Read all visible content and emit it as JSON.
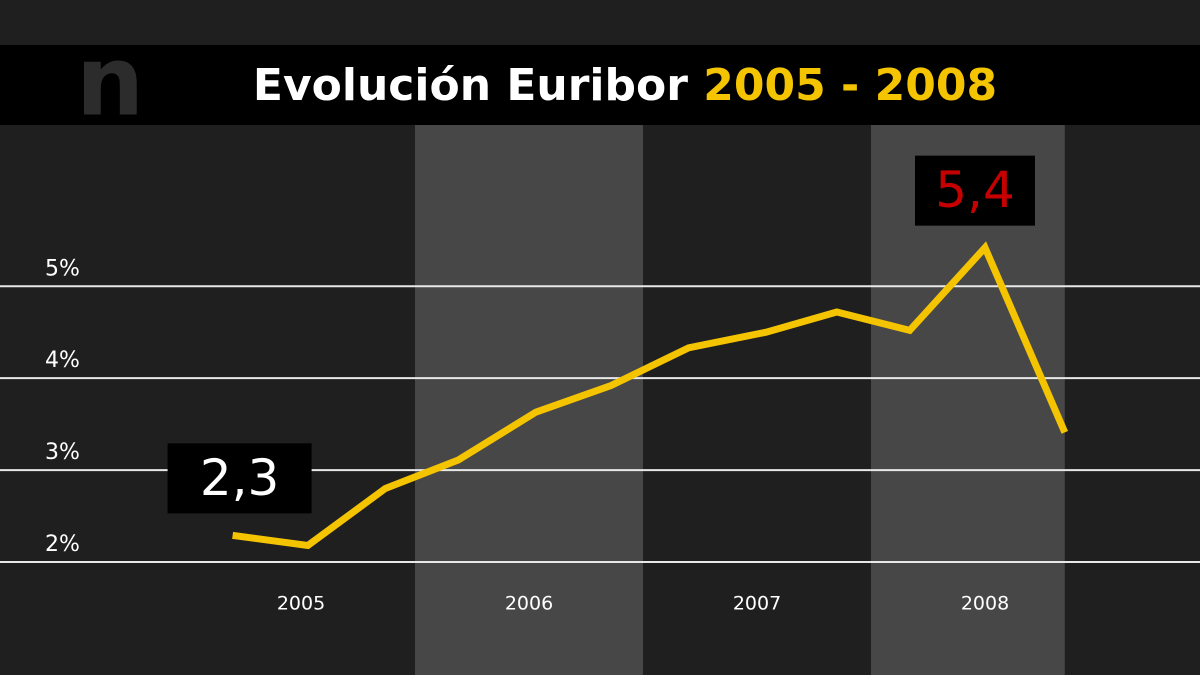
{
  "chart_data": {
    "type": "line",
    "logo": "n",
    "title": "Evolución Euribor",
    "subtitle": "2005 - 2008",
    "x": [
      2005.2,
      2005.53,
      2005.87,
      2006.19,
      2006.53,
      2006.86,
      2007.2,
      2007.54,
      2007.85,
      2008.17,
      2008.5,
      2008.85
    ],
    "series": [
      {
        "color": "#f5c400",
        "values": [
          2.29,
          2.18,
          2.8,
          3.11,
          3.63,
          3.92,
          4.33,
          4.5,
          4.72,
          4.52,
          5.42,
          3.41
        ],
        "value_labels": [
          "2,3",
          null,
          null,
          null,
          null,
          null,
          null,
          null,
          null,
          null,
          "5,4",
          null
        ]
      }
    ],
    "xlim": [
      2005,
      2009
    ],
    "xticks": [
      {
        "value": 2005.5,
        "label": "2005"
      },
      {
        "value": 2006.5,
        "label": "2006"
      },
      {
        "value": 2007.5,
        "label": "2007"
      },
      {
        "value": 2008.5,
        "label": "2008"
      }
    ],
    "ylim": [
      2,
      6.7
    ],
    "yticks": [
      {
        "value": 2,
        "label": "2%"
      },
      {
        "value": 3,
        "label": "3%"
      },
      {
        "value": 4,
        "label": "4%"
      },
      {
        "value": 5,
        "label": "5%"
      }
    ],
    "grid": true
  }
}
